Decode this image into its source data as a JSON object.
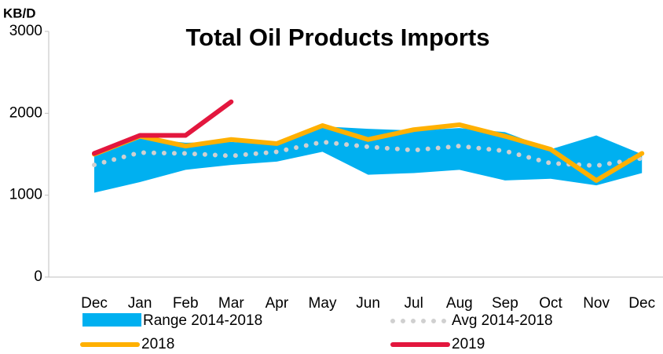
{
  "chart_data": {
    "type": "line",
    "title": "Total Oil Products Imports",
    "y_label": "KB/D",
    "categories": [
      "Dec",
      "Jan",
      "Feb",
      "Mar",
      "Apr",
      "May",
      "Jun",
      "Jul",
      "Aug",
      "Sep",
      "Oct",
      "Nov",
      "Dec"
    ],
    "ylim": [
      0,
      3000
    ],
    "yticks": [
      0,
      1000,
      2000,
      3000
    ],
    "grid": false,
    "legend": "bottom",
    "range": {
      "name": "Range 2014-2018",
      "color": "#00b0f0",
      "low": [
        1030,
        1160,
        1310,
        1370,
        1410,
        1530,
        1250,
        1270,
        1310,
        1180,
        1200,
        1120,
        1270
      ],
      "high": [
        1480,
        1700,
        1640,
        1650,
        1620,
        1840,
        1810,
        1790,
        1820,
        1770,
        1560,
        1730,
        1500
      ]
    },
    "series": [
      {
        "name": "Avg 2014-2018",
        "color": "#d0d0d0",
        "style": "dotted",
        "values": [
          1370,
          1520,
          1510,
          1480,
          1530,
          1650,
          1590,
          1550,
          1600,
          1540,
          1390,
          1360,
          1450
        ]
      },
      {
        "name": "2018",
        "color": "#ffb000",
        "style": "solid",
        "values": [
          1500,
          1720,
          1600,
          1680,
          1630,
          1850,
          1680,
          1800,
          1860,
          1720,
          1560,
          1180,
          1510
        ]
      },
      {
        "name": "2019",
        "color": "#e3173e",
        "style": "solid",
        "values": [
          1510,
          1730,
          1730,
          2140,
          null,
          null,
          null,
          null,
          null,
          null,
          null,
          null,
          null
        ]
      }
    ]
  }
}
